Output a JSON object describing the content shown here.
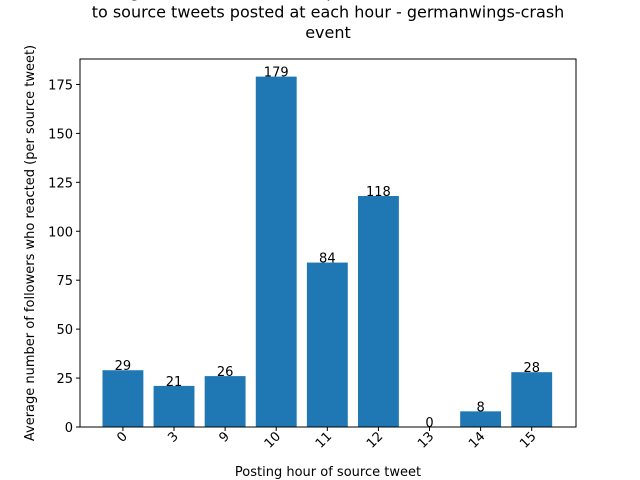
{
  "chart_data": {
    "type": "bar",
    "title": "Average number of followers (per source tweet) who reacted\nto source tweets posted at each hour - germanwings-crash\nevent",
    "x_label": "Posting hour of source tweet",
    "y_label": "Average number of followers who reacted (per source tweet)",
    "categories": [
      "0",
      "3",
      "9",
      "10",
      "11",
      "12",
      "13",
      "14",
      "15"
    ],
    "values": [
      29,
      21,
      26,
      179,
      84,
      118,
      0,
      8,
      28
    ],
    "color": "#1f77b4",
    "ylim": [
      0,
      188
    ],
    "yticks": [
      0,
      25,
      50,
      75,
      100,
      125,
      150,
      175
    ],
    "grid": false
  }
}
